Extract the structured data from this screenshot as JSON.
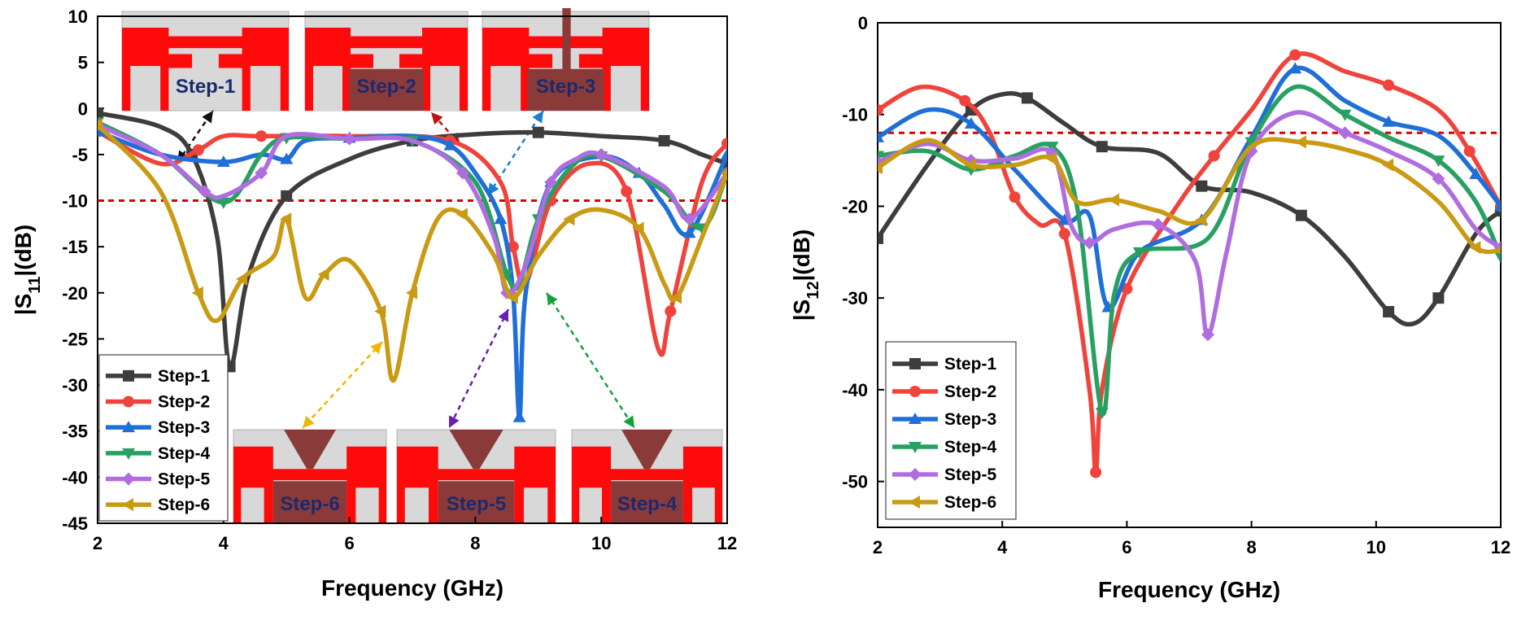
{
  "threshold_color": "#d90000",
  "series_colors": [
    "#3d3d3d",
    "#f0433c",
    "#1f6fd6",
    "#27a062",
    "#b06de0",
    "#c99a13"
  ],
  "chart_data": [
    {
      "type": "line",
      "xlabel": "Frequency (GHz)",
      "ylabel": "|S11|(dB)",
      "xlim": [
        2,
        12
      ],
      "ylim": [
        -45,
        10
      ],
      "xticks": [
        2,
        4,
        6,
        8,
        10,
        12
      ],
      "yticks": [
        10,
        5,
        0,
        -5,
        -10,
        -15,
        -20,
        -25,
        -30,
        -35,
        -40,
        -45
      ],
      "threshold": -10,
      "legend_position": "bottom-left",
      "series": [
        {
          "name": "Step-1",
          "marker": "square",
          "points": [
            [
              2,
              -0.5
            ],
            [
              3,
              -2
            ],
            [
              3.5,
              -5
            ],
            [
              3.9,
              -14
            ],
            [
              4.1,
              -28
            ],
            [
              4.4,
              -18
            ],
            [
              5,
              -9.5
            ],
            [
              6,
              -5.5
            ],
            [
              7,
              -3.5
            ],
            [
              8,
              -2.8
            ],
            [
              9,
              -2.6
            ],
            [
              10,
              -3
            ],
            [
              11,
              -3.5
            ],
            [
              11.6,
              -5
            ],
            [
              12,
              -6
            ]
          ]
        },
        {
          "name": "Step-2",
          "marker": "circle",
          "points": [
            [
              2,
              -2.5
            ],
            [
              3,
              -6
            ],
            [
              3.6,
              -4.5
            ],
            [
              4,
              -3
            ],
            [
              4.6,
              -3
            ],
            [
              6,
              -3
            ],
            [
              7.6,
              -3.5
            ],
            [
              8.4,
              -8
            ],
            [
              8.6,
              -15
            ],
            [
              8.8,
              -19
            ],
            [
              9.2,
              -10
            ],
            [
              9.8,
              -6
            ],
            [
              10.4,
              -9
            ],
            [
              10.9,
              -26
            ],
            [
              11.1,
              -22
            ],
            [
              11.6,
              -8
            ],
            [
              12,
              -3.8
            ]
          ]
        },
        {
          "name": "Step-3",
          "marker": "triangle-up",
          "points": [
            [
              2,
              -2.5
            ],
            [
              3,
              -5
            ],
            [
              4,
              -5.8
            ],
            [
              4.6,
              -5
            ],
            [
              5,
              -5.5
            ],
            [
              5.3,
              -3.5
            ],
            [
              6,
              -3.2
            ],
            [
              7,
              -3
            ],
            [
              7.6,
              -4
            ],
            [
              8,
              -7
            ],
            [
              8.4,
              -12
            ],
            [
              8.6,
              -20
            ],
            [
              8.7,
              -33.5
            ],
            [
              8.8,
              -20
            ],
            [
              9.2,
              -8
            ],
            [
              10,
              -5.2
            ],
            [
              10.6,
              -7
            ],
            [
              11,
              -10.5
            ],
            [
              11.4,
              -13.5
            ],
            [
              12,
              -5
            ]
          ]
        },
        {
          "name": "Step-4",
          "marker": "triangle-down",
          "points": [
            [
              2,
              -1.5
            ],
            [
              3,
              -5
            ],
            [
              4,
              -10.2
            ],
            [
              4.6,
              -5
            ],
            [
              5,
              -3.2
            ],
            [
              6,
              -3.3
            ],
            [
              7,
              -3.5
            ],
            [
              8,
              -8
            ],
            [
              8.5,
              -18
            ],
            [
              8.7,
              -19
            ],
            [
              9,
              -12
            ],
            [
              9.5,
              -6.5
            ],
            [
              10,
              -5.2
            ],
            [
              11,
              -9
            ],
            [
              11.6,
              -13
            ],
            [
              12,
              -7
            ]
          ]
        },
        {
          "name": "Step-5",
          "marker": "diamond",
          "points": [
            [
              2,
              -1.8
            ],
            [
              3,
              -5
            ],
            [
              3.7,
              -9
            ],
            [
              4,
              -9.5
            ],
            [
              4.6,
              -7
            ],
            [
              5,
              -3
            ],
            [
              6,
              -3.3
            ],
            [
              7,
              -3.5
            ],
            [
              7.8,
              -7
            ],
            [
              8.3,
              -14
            ],
            [
              8.5,
              -20
            ],
            [
              8.8,
              -17
            ],
            [
              9.2,
              -8
            ],
            [
              9.6,
              -5.5
            ],
            [
              10,
              -5
            ],
            [
              11,
              -8.5
            ],
            [
              11.4,
              -12
            ],
            [
              12,
              -7
            ]
          ]
        },
        {
          "name": "Step-6",
          "marker": "triangle-left",
          "points": [
            [
              2,
              -1.8
            ],
            [
              3,
              -9
            ],
            [
              3.6,
              -20
            ],
            [
              3.9,
              -23
            ],
            [
              4.3,
              -18.5
            ],
            [
              4.8,
              -16
            ],
            [
              5,
              -12
            ],
            [
              5.3,
              -20.5
            ],
            [
              5.6,
              -18
            ],
            [
              6,
              -16.5
            ],
            [
              6.5,
              -22
            ],
            [
              6.7,
              -29.5
            ],
            [
              7,
              -20
            ],
            [
              7.4,
              -12
            ],
            [
              7.8,
              -11.5
            ],
            [
              8.3,
              -16
            ],
            [
              8.6,
              -20.5
            ],
            [
              9,
              -16
            ],
            [
              9.5,
              -12
            ],
            [
              10,
              -11
            ],
            [
              10.6,
              -13
            ],
            [
              11,
              -19
            ],
            [
              11.2,
              -20.5
            ],
            [
              11.6,
              -14
            ],
            [
              12,
              -7
            ]
          ]
        }
      ],
      "step_labels": [
        "Step-1",
        "Step-2",
        "Step-3",
        "Step-6",
        "Step-5",
        "Step-4"
      ]
    },
    {
      "type": "line",
      "xlabel": "Frequency (GHz)",
      "ylabel": "|S12|(dB)",
      "xlim": [
        2,
        12
      ],
      "ylim": [
        -55,
        0
      ],
      "xticks": [
        2,
        4,
        6,
        8,
        10,
        12
      ],
      "yticks": [
        0,
        -10,
        -20,
        -30,
        -40,
        -50
      ],
      "threshold": -12,
      "legend_position": "bottom-left",
      "series": [
        {
          "name": "Step-1",
          "marker": "square",
          "points": [
            [
              2,
              -23.5
            ],
            [
              2.8,
              -15.5
            ],
            [
              3.5,
              -9.5
            ],
            [
              4,
              -7.8
            ],
            [
              4.4,
              -8.2
            ],
            [
              5,
              -11
            ],
            [
              5.6,
              -13.5
            ],
            [
              6.5,
              -14.2
            ],
            [
              7.2,
              -17.8
            ],
            [
              8,
              -18.5
            ],
            [
              8.8,
              -21
            ],
            [
              9.5,
              -25.5
            ],
            [
              10.2,
              -31.5
            ],
            [
              10.6,
              -32.8
            ],
            [
              11,
              -30
            ],
            [
              11.6,
              -23
            ],
            [
              12,
              -20.5
            ]
          ]
        },
        {
          "name": "Step-2",
          "marker": "circle",
          "points": [
            [
              2,
              -9.5
            ],
            [
              2.7,
              -7
            ],
            [
              3.4,
              -8.5
            ],
            [
              3.8,
              -12
            ],
            [
              4.2,
              -19
            ],
            [
              4.6,
              -22
            ],
            [
              5,
              -23
            ],
            [
              5.4,
              -40
            ],
            [
              5.5,
              -49
            ],
            [
              5.6,
              -40
            ],
            [
              6,
              -29
            ],
            [
              6.8,
              -20
            ],
            [
              7.4,
              -14.5
            ],
            [
              8,
              -9.5
            ],
            [
              8.7,
              -3.5
            ],
            [
              9.5,
              -5.3
            ],
            [
              10.2,
              -6.8
            ],
            [
              11,
              -9.5
            ],
            [
              11.5,
              -14
            ],
            [
              12,
              -20
            ]
          ]
        },
        {
          "name": "Step-3",
          "marker": "triangle-up",
          "points": [
            [
              2,
              -12.5
            ],
            [
              2.8,
              -9.5
            ],
            [
              3.5,
              -11
            ],
            [
              4.2,
              -16
            ],
            [
              5,
              -21.5
            ],
            [
              5.4,
              -21
            ],
            [
              5.7,
              -31
            ],
            [
              6.2,
              -25
            ],
            [
              7.2,
              -21.5
            ],
            [
              8,
              -12.5
            ],
            [
              8.7,
              -5
            ],
            [
              9.5,
              -8.5
            ],
            [
              10.2,
              -10.8
            ],
            [
              11,
              -12.3
            ],
            [
              11.6,
              -16.5
            ],
            [
              12,
              -20
            ]
          ]
        },
        {
          "name": "Step-4",
          "marker": "triangle-down",
          "points": [
            [
              2,
              -14.5
            ],
            [
              2.8,
              -14
            ],
            [
              3.5,
              -16
            ],
            [
              4.2,
              -14.5
            ],
            [
              4.8,
              -13.5
            ],
            [
              5.2,
              -20
            ],
            [
              5.6,
              -42.5
            ],
            [
              5.8,
              -29.5
            ],
            [
              6.2,
              -25
            ],
            [
              7.3,
              -23.5
            ],
            [
              8,
              -13
            ],
            [
              8.7,
              -7
            ],
            [
              9.5,
              -10
            ],
            [
              10.2,
              -12.5
            ],
            [
              11,
              -15
            ],
            [
              11.6,
              -19.5
            ],
            [
              12,
              -25.5
            ]
          ]
        },
        {
          "name": "Step-5",
          "marker": "diamond",
          "points": [
            [
              2,
              -15.2
            ],
            [
              2.8,
              -13.2
            ],
            [
              3.5,
              -15
            ],
            [
              4.2,
              -14.8
            ],
            [
              4.8,
              -14.2
            ],
            [
              5.1,
              -22
            ],
            [
              5.4,
              -24
            ],
            [
              5.8,
              -22.5
            ],
            [
              6.5,
              -22
            ],
            [
              7.1,
              -26
            ],
            [
              7.3,
              -34
            ],
            [
              7.6,
              -25
            ],
            [
              8,
              -14
            ],
            [
              8.7,
              -9.8
            ],
            [
              9.5,
              -12
            ],
            [
              10.2,
              -14
            ],
            [
              11,
              -17
            ],
            [
              11.6,
              -22.5
            ],
            [
              12,
              -24.5
            ]
          ]
        },
        {
          "name": "Step-6",
          "marker": "triangle-left",
          "points": [
            [
              2,
              -15.8
            ],
            [
              2.8,
              -12.8
            ],
            [
              3.5,
              -15.5
            ],
            [
              4.2,
              -15.5
            ],
            [
              4.8,
              -14.8
            ],
            [
              5.2,
              -19.5
            ],
            [
              5.8,
              -19.3
            ],
            [
              6.5,
              -20.5
            ],
            [
              7.2,
              -21.5
            ],
            [
              8,
              -13.5
            ],
            [
              8.8,
              -13
            ],
            [
              9.5,
              -13.8
            ],
            [
              10.2,
              -15.5
            ],
            [
              11,
              -19.5
            ],
            [
              11.6,
              -24.5
            ],
            [
              12,
              -24.8
            ]
          ]
        }
      ]
    }
  ]
}
